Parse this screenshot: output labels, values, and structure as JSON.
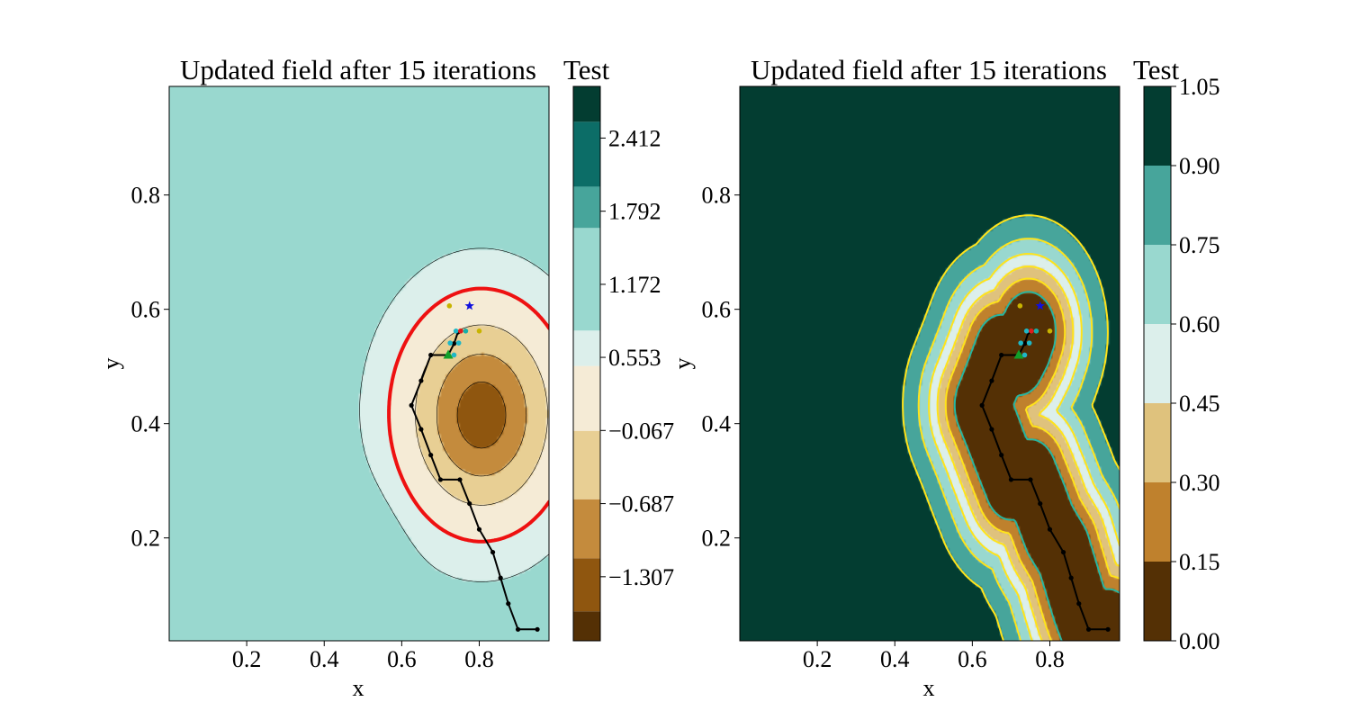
{
  "colors": {
    "brbg_levels": [
      "#543005",
      "#8c510a",
      "#bf812d",
      "#dfc27d",
      "#f6e8c3",
      "#c7eae5",
      "#80cdc1",
      "#35978f",
      "#01665e",
      "#003c30"
    ],
    "left_levels": [
      "#543005",
      "#8f560f",
      "#c48b3d",
      "#e8cf94",
      "#f5ebd6",
      "#dcefeb",
      "#99d8cf",
      "#47a59b",
      "#0c6d67",
      "#033d31"
    ],
    "threshold_contour": "#ee1111",
    "right_contours": "#ffe31a",
    "path": "#000000",
    "candidate_dots": [
      "#c8b400",
      "#1fb7c6",
      "#16b0a9",
      "#e01c1c"
    ],
    "start_marker": "#11a02a",
    "best_marker": "#1010dd"
  },
  "chart_data": [
    {
      "type": "contour",
      "title": "Updated field after 15 iterations",
      "xlabel": "x",
      "ylabel": "y",
      "xlim": [
        0.0,
        0.98
      ],
      "ylim": [
        0.02,
        0.99
      ],
      "xticks": [
        "0.2",
        "0.4",
        "0.6",
        "0.8"
      ],
      "yticks": [
        "0.2",
        "0.4",
        "0.6",
        "0.8"
      ],
      "colorbar": {
        "title": "Test",
        "range": [
          -1.85,
          2.85
        ],
        "ticks": [
          -1.307,
          -0.687,
          -0.067,
          0.553,
          1.172,
          1.792,
          2.412
        ],
        "tick_labels": [
          "−1.307",
          "−0.687",
          "−0.067",
          "0.553",
          "1.172",
          "1.792",
          "2.412"
        ],
        "level_edges": [
          -1.85,
          -1.6,
          -1.15,
          -0.65,
          -0.07,
          0.48,
          0.78,
          1.65,
          2.0,
          2.55,
          2.85
        ]
      },
      "threshold_level": 0.48,
      "field": {
        "base": 0.9,
        "min_center": [
          0.8,
          0.415
        ],
        "min_depth": 2.3,
        "min_sigma": [
          0.13,
          0.12
        ],
        "tilt_coeff": 0.35,
        "ridge_center": [
          0.52,
          0.05
        ],
        "ridge_sigma": [
          0.06,
          0.12
        ],
        "ridge_height": 0.35
      },
      "path": [
        [
          0.95,
          0.04
        ],
        [
          0.9,
          0.04
        ],
        [
          0.875,
          0.085
        ],
        [
          0.855,
          0.13
        ],
        [
          0.835,
          0.175
        ],
        [
          0.8,
          0.215
        ],
        [
          0.775,
          0.26
        ],
        [
          0.75,
          0.302
        ],
        [
          0.7,
          0.302
        ],
        [
          0.675,
          0.345
        ],
        [
          0.65,
          0.39
        ],
        [
          0.625,
          0.432
        ],
        [
          0.65,
          0.475
        ],
        [
          0.675,
          0.52
        ],
        [
          0.72,
          0.52
        ],
        [
          0.735,
          0.54
        ],
        [
          0.745,
          0.56
        ]
      ],
      "candidates": [
        {
          "x": 0.723,
          "y": 0.606,
          "color": "#c8b400"
        },
        {
          "x": 0.8,
          "y": 0.562,
          "color": "#c8b400"
        },
        {
          "x": 0.74,
          "y": 0.562,
          "color": "#1fb7c6"
        },
        {
          "x": 0.765,
          "y": 0.562,
          "color": "#16b0a9"
        },
        {
          "x": 0.752,
          "y": 0.562,
          "color": "#e01c1c"
        },
        {
          "x": 0.725,
          "y": 0.541,
          "color": "#1fb7c6"
        },
        {
          "x": 0.747,
          "y": 0.541,
          "color": "#1fb7c6"
        },
        {
          "x": 0.735,
          "y": 0.52,
          "color": "#1fb7c6"
        }
      ],
      "start": {
        "x": 0.72,
        "y": 0.52
      },
      "best": {
        "x": 0.775,
        "y": 0.606
      }
    },
    {
      "type": "contour",
      "title": "Updated field after 15 iterations",
      "xlabel": "x",
      "ylabel": "y",
      "xlim": [
        0.0,
        0.98
      ],
      "ylim": [
        0.02,
        0.99
      ],
      "xticks": [
        "0.2",
        "0.4",
        "0.6",
        "0.8"
      ],
      "yticks": [
        "0.2",
        "0.4",
        "0.6",
        "0.8"
      ],
      "colorbar": {
        "title": "Test",
        "range": [
          0.0,
          1.05
        ],
        "ticks": [
          0.0,
          0.15,
          0.3,
          0.45,
          0.6,
          0.75,
          0.9,
          1.05
        ],
        "tick_labels": [
          "0.00",
          "0.15",
          "0.30",
          "0.45",
          "0.60",
          "0.75",
          "0.90",
          "1.05"
        ],
        "level_edges": [
          0.0,
          0.15,
          0.3,
          0.45,
          0.6,
          0.75,
          0.9,
          1.05
        ]
      },
      "field": {
        "sigma": 0.085,
        "offset": 0.022
      },
      "path": [
        [
          0.95,
          0.04
        ],
        [
          0.9,
          0.04
        ],
        [
          0.875,
          0.085
        ],
        [
          0.855,
          0.13
        ],
        [
          0.835,
          0.175
        ],
        [
          0.8,
          0.215
        ],
        [
          0.775,
          0.26
        ],
        [
          0.75,
          0.302
        ],
        [
          0.7,
          0.302
        ],
        [
          0.675,
          0.345
        ],
        [
          0.65,
          0.39
        ],
        [
          0.625,
          0.432
        ],
        [
          0.65,
          0.475
        ],
        [
          0.675,
          0.52
        ],
        [
          0.72,
          0.52
        ],
        [
          0.735,
          0.54
        ],
        [
          0.745,
          0.56
        ]
      ],
      "candidates": [
        {
          "x": 0.723,
          "y": 0.606,
          "color": "#c8b400"
        },
        {
          "x": 0.8,
          "y": 0.562,
          "color": "#c8b400"
        },
        {
          "x": 0.74,
          "y": 0.562,
          "color": "#1fb7c6"
        },
        {
          "x": 0.765,
          "y": 0.562,
          "color": "#16b0a9"
        },
        {
          "x": 0.752,
          "y": 0.562,
          "color": "#e01c1c"
        },
        {
          "x": 0.725,
          "y": 0.541,
          "color": "#1fb7c6"
        },
        {
          "x": 0.747,
          "y": 0.541,
          "color": "#1fb7c6"
        },
        {
          "x": 0.735,
          "y": 0.52,
          "color": "#1fb7c6"
        }
      ],
      "start": {
        "x": 0.72,
        "y": 0.52
      },
      "best": {
        "x": 0.775,
        "y": 0.606
      }
    }
  ]
}
